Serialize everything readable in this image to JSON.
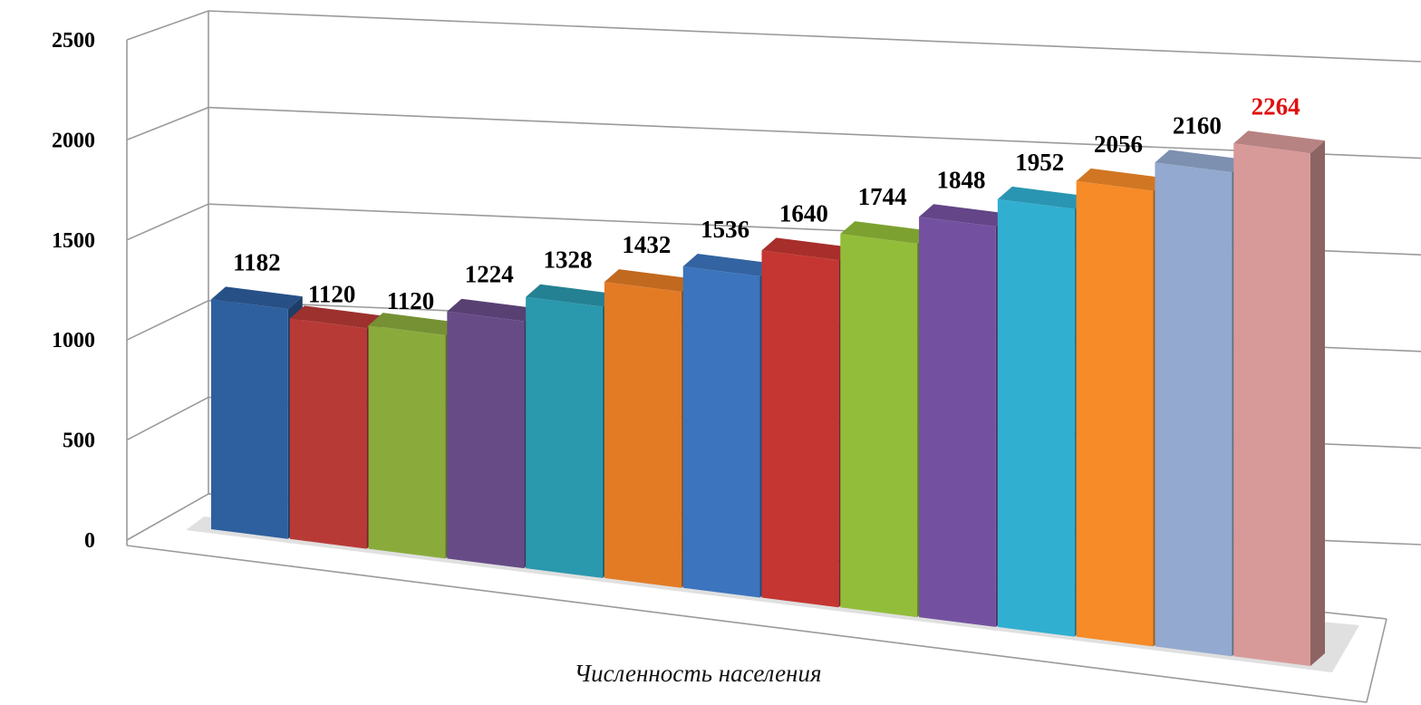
{
  "chart_data": {
    "type": "bar",
    "title": "",
    "xlabel": "Численность населения",
    "ylabel": "",
    "ylim": [
      0,
      2500
    ],
    "yticks": [
      0,
      500,
      1000,
      1500,
      2000,
      2500
    ],
    "grid": true,
    "legend": "none",
    "series": [
      {
        "values": [
          1182,
          1120,
          1120,
          1224,
          1328,
          1432,
          1536,
          1640,
          1744,
          1848,
          1952,
          2056,
          2160,
          2264
        ]
      }
    ],
    "value_labels": [
      "1182",
      "1120",
      "1120",
      "1224",
      "1328",
      "1432",
      "1536",
      "1640",
      "1744",
      "1848",
      "1952",
      "2056",
      "2160",
      "2264"
    ],
    "colors": [
      "#2e5f9e",
      "#b83a36",
      "#8aab3c",
      "#674b87",
      "#2a98ad",
      "#e37b25",
      "#3c74bd",
      "#c53632",
      "#92bd3a",
      "#7451a0",
      "#31afd1",
      "#f68b28",
      "#93a9cf",
      "#d79a99"
    ],
    "highlight_color": "#e01010",
    "highlight_index": 13
  }
}
